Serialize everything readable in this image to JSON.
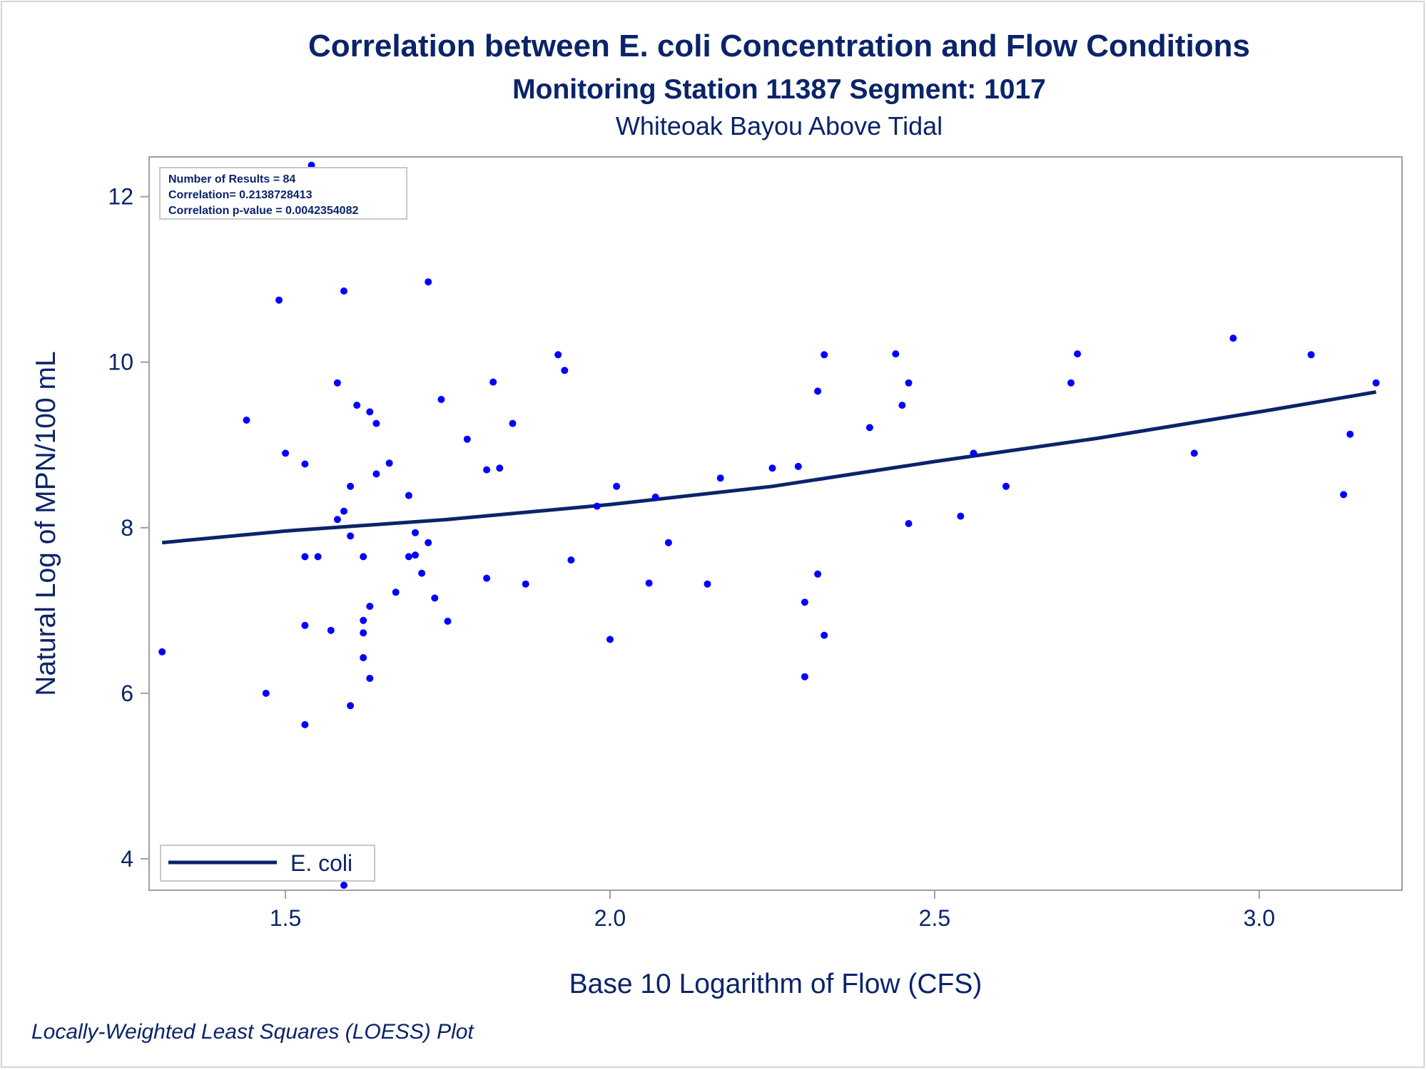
{
  "colors": {
    "text": "#0a246a",
    "points": "#0000ff",
    "fit_line": "#0a246a",
    "frame": "#a0a0a0"
  },
  "chart_data": {
    "type": "scatter",
    "title": "Correlation between E. coli Concentration and Flow Conditions",
    "subtitle": "Monitoring Station 11387 Segment: 1017",
    "subtitle2": "Whiteoak Bayou Above Tidal",
    "xlabel": "Base 10 Logarithm of Flow (CFS)",
    "ylabel": "Natural Log of MPN/100 mL",
    "footnote": "Locally-Weighted Least Squares (LOESS) Plot",
    "xlim": [
      1.29,
      3.22
    ],
    "ylim": [
      3.62,
      12.48
    ],
    "xticks": [
      "1.5",
      "2.0",
      "2.5",
      "3.0"
    ],
    "xtick_values": [
      1.5,
      2.0,
      2.5,
      3.0
    ],
    "yticks": [
      "4",
      "6",
      "8",
      "10",
      "12"
    ],
    "ytick_values": [
      4,
      6,
      8,
      10,
      12
    ],
    "grid": false,
    "stats": [
      "Number of Results = 84",
      "Correlation= 0.2138728413",
      "Correlation p-value = 0.0042354082"
    ],
    "stats_placement": "top-left",
    "legend": {
      "label": "E. coli",
      "placement": "bottom-left"
    },
    "series": [
      {
        "kind": "points",
        "x": [
          1.31,
          1.44,
          1.47,
          1.49,
          1.5,
          1.53,
          1.53,
          1.53,
          1.53,
          1.54,
          1.55,
          1.57,
          1.58,
          1.58,
          1.59,
          1.59,
          1.59,
          1.6,
          1.6,
          1.6,
          1.61,
          1.62,
          1.62,
          1.62,
          1.62,
          1.63,
          1.63,
          1.63,
          1.64,
          1.64,
          1.66,
          1.67,
          1.69,
          1.69,
          1.7,
          1.7,
          1.71,
          1.72,
          1.72,
          1.73,
          1.74,
          1.75,
          1.78,
          1.81,
          1.81,
          1.82,
          1.83,
          1.85,
          1.87,
          1.92,
          1.93,
          1.94,
          1.98,
          2.0,
          2.01,
          2.06,
          2.07,
          2.09,
          2.15,
          2.17,
          2.25,
          2.29,
          2.3,
          2.3,
          2.32,
          2.32,
          2.33,
          2.33,
          2.4,
          2.44,
          2.45,
          2.46,
          2.46,
          2.54,
          2.56,
          2.61,
          2.71,
          2.72,
          2.9,
          2.96,
          3.08,
          3.13,
          3.14,
          3.18
        ],
        "y": [
          6.5,
          9.3,
          6.0,
          10.75,
          8.9,
          8.77,
          7.65,
          6.82,
          5.62,
          12.38,
          7.65,
          6.76,
          9.75,
          8.1,
          8.2,
          10.86,
          3.68,
          8.5,
          7.9,
          5.85,
          9.48,
          7.65,
          6.88,
          6.73,
          6.43,
          9.4,
          7.05,
          6.18,
          9.26,
          8.65,
          8.78,
          7.22,
          8.39,
          7.65,
          7.94,
          7.67,
          7.45,
          10.97,
          7.82,
          7.15,
          9.55,
          6.87,
          9.07,
          8.7,
          7.39,
          9.76,
          8.72,
          9.26,
          7.32,
          10.09,
          9.9,
          7.61,
          8.26,
          6.65,
          8.5,
          7.33,
          8.37,
          7.82,
          7.32,
          8.6,
          8.72,
          8.74,
          7.1,
          6.2,
          9.65,
          7.44,
          10.09,
          6.7,
          9.21,
          10.1,
          9.48,
          9.75,
          8.05,
          8.14,
          8.9,
          8.5,
          9.75,
          10.1,
          8.9,
          10.29,
          10.09,
          8.4,
          9.13,
          9.75
        ]
      },
      {
        "kind": "line",
        "name": "E. coli",
        "x": [
          1.31,
          1.5,
          1.75,
          2.0,
          2.25,
          2.5,
          2.75,
          3.0,
          3.18
        ],
        "y": [
          7.82,
          7.96,
          8.1,
          8.28,
          8.5,
          8.8,
          9.08,
          9.4,
          9.64
        ]
      }
    ]
  }
}
